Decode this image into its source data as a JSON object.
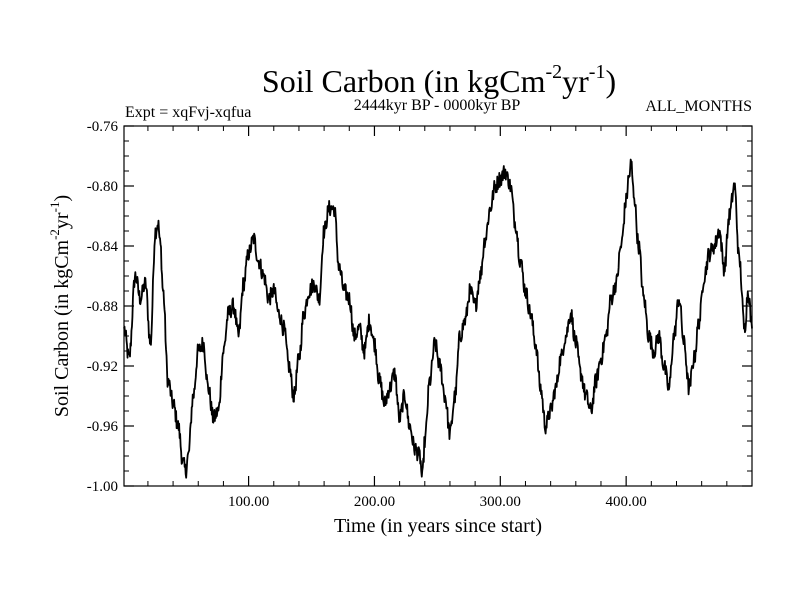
{
  "chart_data": {
    "type": "line",
    "title": {
      "main": "Soil Carbon (in kgCm",
      "sup1": "-2",
      "mid": "yr",
      "sup2": "-1",
      "close": ")"
    },
    "subtitle_left": "Expt = xqFvj-xqfua",
    "subtitle_center": "2444kyr BP - 0000kyr BP",
    "subtitle_right": "ALL_MONTHS",
    "xlabel": "Time (in years since start)",
    "ylabel": {
      "main": "Soil Carbon (in kgCm",
      "sup1": "-2",
      "mid": "yr",
      "sup2": "-1",
      "close": ")"
    },
    "xlim": [
      1,
      500
    ],
    "ylim": [
      -1.0,
      -0.76
    ],
    "x_ticks": [
      100,
      200,
      300,
      400
    ],
    "x_tick_labels": [
      "100.00",
      "200.00",
      "300.00",
      "400.00"
    ],
    "y_ticks": [
      -0.76,
      -0.8,
      -0.84,
      -0.88,
      -0.92,
      -0.96,
      -1.0
    ],
    "y_tick_labels": [
      "-0.76",
      "-0.80",
      "-0.84",
      "-0.88",
      "-0.92",
      "-0.96",
      "-1.00"
    ],
    "series": [
      {
        "name": "Soil Carbon",
        "x": [
          1,
          5,
          10,
          14,
          18,
          22,
          26,
          28,
          30,
          32,
          36,
          40,
          44,
          48,
          50,
          52,
          56,
          60,
          64,
          68,
          72,
          76,
          80,
          84,
          88,
          92,
          96,
          100,
          104,
          108,
          112,
          116,
          120,
          124,
          128,
          132,
          136,
          140,
          144,
          148,
          152,
          156,
          160,
          164,
          168,
          172,
          176,
          180,
          184,
          188,
          192,
          196,
          200,
          204,
          208,
          212,
          216,
          220,
          224,
          228,
          232,
          236,
          238,
          240,
          244,
          248,
          252,
          256,
          260,
          264,
          268,
          272,
          276,
          280,
          284,
          288,
          292,
          296,
          300,
          304,
          306,
          308,
          312,
          316,
          320,
          324,
          328,
          332,
          336,
          340,
          344,
          348,
          352,
          356,
          360,
          364,
          368,
          372,
          376,
          380,
          384,
          388,
          392,
          396,
          400,
          402,
          404,
          406,
          410,
          414,
          418,
          422,
          426,
          430,
          434,
          438,
          442,
          446,
          450,
          454,
          458,
          462,
          466,
          470,
          474,
          478,
          482,
          486,
          490,
          494,
          497,
          500
        ],
        "y": [
          -0.895,
          -0.915,
          -0.86,
          -0.875,
          -0.865,
          -0.905,
          -0.83,
          -0.825,
          -0.84,
          -0.87,
          -0.93,
          -0.945,
          -0.96,
          -0.985,
          -0.99,
          -0.98,
          -0.94,
          -0.91,
          -0.905,
          -0.935,
          -0.955,
          -0.95,
          -0.91,
          -0.885,
          -0.88,
          -0.9,
          -0.865,
          -0.845,
          -0.835,
          -0.85,
          -0.86,
          -0.875,
          -0.87,
          -0.885,
          -0.895,
          -0.92,
          -0.94,
          -0.915,
          -0.885,
          -0.87,
          -0.865,
          -0.875,
          -0.83,
          -0.815,
          -0.815,
          -0.855,
          -0.87,
          -0.875,
          -0.9,
          -0.895,
          -0.91,
          -0.89,
          -0.905,
          -0.93,
          -0.945,
          -0.935,
          -0.925,
          -0.955,
          -0.94,
          -0.96,
          -0.975,
          -0.98,
          -0.995,
          -0.97,
          -0.93,
          -0.905,
          -0.92,
          -0.94,
          -0.965,
          -0.94,
          -0.9,
          -0.89,
          -0.87,
          -0.88,
          -0.86,
          -0.835,
          -0.815,
          -0.8,
          -0.795,
          -0.79,
          -0.795,
          -0.8,
          -0.825,
          -0.85,
          -0.87,
          -0.885,
          -0.905,
          -0.935,
          -0.96,
          -0.95,
          -0.935,
          -0.915,
          -0.9,
          -0.885,
          -0.905,
          -0.925,
          -0.94,
          -0.95,
          -0.93,
          -0.915,
          -0.9,
          -0.875,
          -0.865,
          -0.84,
          -0.81,
          -0.795,
          -0.785,
          -0.805,
          -0.84,
          -0.875,
          -0.9,
          -0.91,
          -0.9,
          -0.92,
          -0.935,
          -0.9,
          -0.875,
          -0.905,
          -0.935,
          -0.915,
          -0.89,
          -0.86,
          -0.845,
          -0.84,
          -0.83,
          -0.855,
          -0.82,
          -0.8,
          -0.85,
          -0.895,
          -0.87,
          -0.895
        ]
      }
    ]
  }
}
